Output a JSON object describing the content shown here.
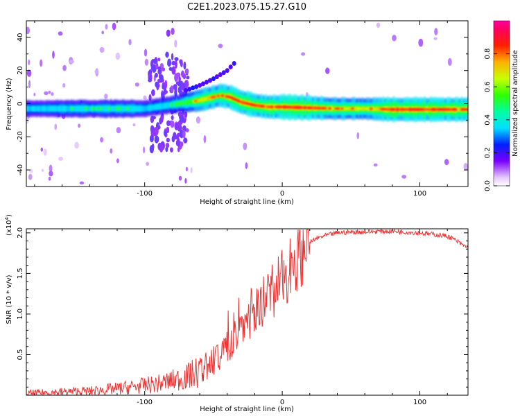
{
  "title": "C2E1.2023.075.15.27.G10",
  "chart_data": [
    {
      "type": "heatmap",
      "xlabel": "Height of straight line (km)",
      "ylabel": "Frequency (Hz)",
      "xlim": [
        -186,
        135
      ],
      "ylim": [
        -50,
        50
      ],
      "x_ticks": [
        -100,
        0,
        100
      ],
      "y_ticks": [
        -40,
        -20,
        0,
        20,
        40
      ],
      "colorbar": {
        "label": "Normalized spectral amplitude",
        "range": [
          0,
          1
        ],
        "ticks": [
          0.0,
          0.2,
          0.4,
          0.6,
          0.8
        ]
      },
      "ridge": {
        "height_km": [
          -186,
          -150,
          -110,
          -100,
          -75,
          -60,
          -45,
          -38,
          -30,
          -20,
          -10,
          0,
          20,
          40,
          60,
          80,
          100,
          120,
          135
        ],
        "frequency_hz": [
          -3,
          -3,
          -3,
          -3,
          0,
          2,
          5,
          4,
          1,
          -1,
          -2,
          -2,
          -2.5,
          -3,
          -3,
          -3.5,
          -3.5,
          -3.5,
          -3.5
        ],
        "amplitude": [
          0.35,
          0.4,
          0.45,
          0.35,
          0.45,
          0.75,
          0.8,
          0.85,
          0.9,
          0.85,
          0.88,
          0.92,
          0.9,
          0.75,
          0.7,
          0.95,
          0.9,
          0.9,
          0.85
        ]
      },
      "secondary_ridge": {
        "height_km": [
          -70,
          -60,
          -50,
          -40,
          -33
        ],
        "frequency_hz": [
          8,
          11,
          15,
          20,
          26
        ]
      }
    },
    {
      "type": "line",
      "xlabel": "Height of straight line (km)",
      "ylabel": "SNR (10 * v/v)",
      "y_multiplier": "(x10",
      "y_multiplier_exp": "4",
      "y_multiplier_close": ")",
      "xlim": [
        -186,
        135
      ],
      "ylim": [
        0,
        2.05
      ],
      "x_ticks": [
        -100,
        0,
        100
      ],
      "y_ticks": [
        0.5,
        1.0,
        1.5,
        2.0
      ],
      "y_tick_labels": [
        "0.5",
        "1.0",
        "1.5",
        "2.0"
      ],
      "color": "#ee3333",
      "series": [
        {
          "x": [
            -186,
            -160,
            -140,
            -120,
            -100,
            -90,
            -80,
            -70,
            -60,
            -50,
            -45,
            -40,
            -35,
            -30,
            -25,
            -20,
            -15,
            -10,
            -5,
            0,
            5,
            10,
            15,
            20,
            25,
            30,
            35,
            40,
            50,
            60,
            70,
            80,
            90,
            100,
            110,
            120,
            125,
            130,
            135
          ],
          "values": [
            0.02,
            0.04,
            0.05,
            0.08,
            0.12,
            0.14,
            0.18,
            0.22,
            0.3,
            0.42,
            0.5,
            0.6,
            0.72,
            0.85,
            0.95,
            1.05,
            1.15,
            1.25,
            1.33,
            1.42,
            1.55,
            1.68,
            1.8,
            1.88,
            1.93,
            1.96,
            1.98,
            2.0,
            2.01,
            2.01,
            2.02,
            2.02,
            2.01,
            2.0,
            1.98,
            1.96,
            1.92,
            1.86,
            1.82
          ]
        }
      ]
    }
  ]
}
